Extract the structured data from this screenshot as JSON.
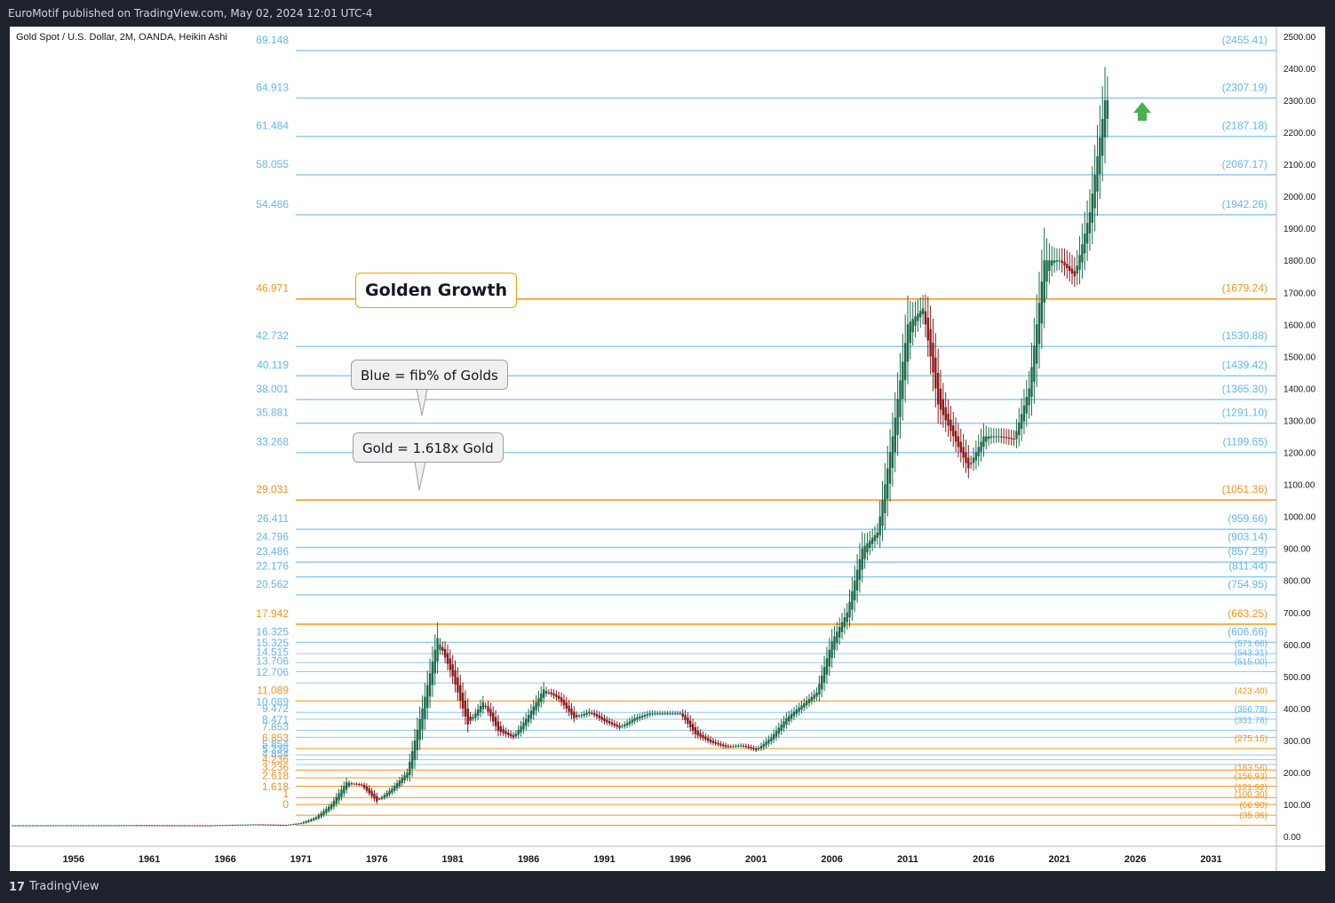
{
  "header": {
    "publisher": "EuroMotif published on TradingView.com, May 02, 2024 12:01 UTC-4"
  },
  "footer": {
    "logo": "17",
    "brand": "TradingView"
  },
  "colors": {
    "fib_blue": "#90caf9",
    "fib_blue_label": "#64b5f6",
    "fib_gold": "#f7931a",
    "bull": "#1e6b4a",
    "bear": "#8b1a1a",
    "arrow": "#4caf50"
  },
  "annotations": {
    "golden_growth": "Golden Growth",
    "blue_note": "Blue = fib% of Golds",
    "gold_note": "Gold = 1.618x Gold"
  },
  "chart_data": {
    "type": "line",
    "title": "Gold Spot / U.S. Dollar, 2M, OANDA, Heikin Ashi",
    "xlabel": "",
    "ylabel": "",
    "x_ticks": [
      "1956",
      "1961",
      "1966",
      "1971",
      "1976",
      "1981",
      "1986",
      "1991",
      "1996",
      "2001",
      "2006",
      "2011",
      "2016",
      "2021",
      "2026",
      "2031"
    ],
    "y_ticks": [
      "2500.00",
      "2400.00",
      "2300.00",
      "2200.00",
      "2100.00",
      "2000.00",
      "1900.00",
      "1800.00",
      "1700.00",
      "1600.00",
      "1500.00",
      "1400.00",
      "1300.00",
      "1200.00",
      "1100.00",
      "1000.00",
      "900.00",
      "800.00",
      "700.00",
      "600.00",
      "500.00",
      "400.00",
      "300.00",
      "200.00",
      "100.00",
      "0.00"
    ],
    "ylim": [
      -30,
      2530
    ],
    "xlim": [
      1951.8,
      2035.3
    ],
    "series": [
      {
        "values": [
          [
            1952,
            35
          ],
          [
            1960,
            35.5
          ],
          [
            1965,
            35
          ],
          [
            1968,
            38
          ],
          [
            1970,
            36
          ],
          [
            1971,
            42
          ],
          [
            1972,
            60
          ],
          [
            1973,
            100
          ],
          [
            1974,
            170
          ],
          [
            1975,
            160
          ],
          [
            1976,
            110
          ],
          [
            1977,
            150
          ],
          [
            1978,
            200
          ],
          [
            1979,
            400
          ],
          [
            1980,
            620
          ],
          [
            1981,
            500
          ],
          [
            1982,
            350
          ],
          [
            1983,
            420
          ],
          [
            1984,
            330
          ],
          [
            1985,
            310
          ],
          [
            1986,
            380
          ],
          [
            1987,
            460
          ],
          [
            1988,
            430
          ],
          [
            1989,
            370
          ],
          [
            1990,
            390
          ],
          [
            1991,
            360
          ],
          [
            1992,
            340
          ],
          [
            1993,
            370
          ],
          [
            1994,
            385
          ],
          [
            1995,
            385
          ],
          [
            1996,
            385
          ],
          [
            1997,
            320
          ],
          [
            1998,
            295
          ],
          [
            1999,
            280
          ],
          [
            2000,
            285
          ],
          [
            2001,
            270
          ],
          [
            2002,
            310
          ],
          [
            2003,
            370
          ],
          [
            2004,
            410
          ],
          [
            2005,
            450
          ],
          [
            2006,
            610
          ],
          [
            2007,
            700
          ],
          [
            2008,
            900
          ],
          [
            2009,
            950
          ],
          [
            2010,
            1250
          ],
          [
            2011,
            1600
          ],
          [
            2012,
            1650
          ],
          [
            2013,
            1350
          ],
          [
            2014,
            1250
          ],
          [
            2015,
            1150
          ],
          [
            2016,
            1250
          ],
          [
            2017,
            1250
          ],
          [
            2018,
            1240
          ],
          [
            2019,
            1400
          ],
          [
            2020,
            1800
          ],
          [
            2021,
            1800
          ],
          [
            2022,
            1750
          ],
          [
            2023,
            1950
          ],
          [
            2024,
            2300
          ]
        ]
      }
    ],
    "fib_levels": [
      {
        "fib": "69.148",
        "price": "(2455.41)",
        "value": 2455.41,
        "color": "blue"
      },
      {
        "fib": "64.913",
        "price": "(2307.19)",
        "value": 2307.19,
        "color": "blue"
      },
      {
        "fib": "61.484",
        "price": "(2187.18)",
        "value": 2187.18,
        "color": "blue"
      },
      {
        "fib": "58.055",
        "price": "(2067.17)",
        "value": 2067.17,
        "color": "blue"
      },
      {
        "fib": "54.486",
        "price": "(1942.26)",
        "value": 1942.26,
        "color": "blue"
      },
      {
        "fib": "46.971",
        "price": "(1679.24)",
        "value": 1679.24,
        "color": "gold"
      },
      {
        "fib": "42.732",
        "price": "(1530.88)",
        "value": 1530.88,
        "color": "blue"
      },
      {
        "fib": "40.119",
        "price": "(1439.42)",
        "value": 1439.42,
        "color": "blue"
      },
      {
        "fib": "38.001",
        "price": "(1365.30)",
        "value": 1365.3,
        "color": "blue"
      },
      {
        "fib": "35.881",
        "price": "(1291.10)",
        "value": 1291.1,
        "color": "blue"
      },
      {
        "fib": "33.268",
        "price": "(1199.65)",
        "value": 1199.65,
        "color": "blue"
      },
      {
        "fib": "29.031",
        "price": "(1051.36)",
        "value": 1051.36,
        "color": "gold"
      },
      {
        "fib": "26.411",
        "price": "(959.66)",
        "value": 959.66,
        "color": "blue"
      },
      {
        "fib": "24.796",
        "price": "(903.14)",
        "value": 903.14,
        "color": "blue"
      },
      {
        "fib": "23.486",
        "price": "(857.29)",
        "value": 857.29,
        "color": "blue"
      },
      {
        "fib": "22.176",
        "price": "(811.44)",
        "value": 811.44,
        "color": "blue"
      },
      {
        "fib": "20.562",
        "price": "(754.95)",
        "value": 754.95,
        "color": "blue"
      },
      {
        "fib": "17.942",
        "price": "(663.25)",
        "value": 663.25,
        "color": "gold"
      },
      {
        "fib": "16.325",
        "price": "(606.66)",
        "value": 606.66,
        "color": "blue"
      },
      {
        "fib": "15.325",
        "price": "(571.66)",
        "value": 571.66,
        "color": "blue"
      },
      {
        "fib": "14.515",
        "price": "(543.31)",
        "value": 543.31,
        "color": "blue"
      },
      {
        "fib": "13.706",
        "price": "(515.00)",
        "value": 515.0,
        "color": "blue"
      },
      {
        "fib": "12.706",
        "price": "",
        "value": 480.0,
        "color": "blue"
      },
      {
        "fib": "11.089",
        "price": "(423.40)",
        "value": 423.4,
        "color": "gold"
      },
      {
        "fib": "10.089",
        "price": "",
        "value": 388.0,
        "color": "blue"
      },
      {
        "fib": "9.472",
        "price": "(366.78)",
        "value": 366.78,
        "color": "blue"
      },
      {
        "fib": "8.471",
        "price": "(331.78)",
        "value": 331.78,
        "color": "blue"
      },
      {
        "fib": "7.853",
        "price": "",
        "value": 310.0,
        "color": "blue"
      },
      {
        "fib": "6.853",
        "price": "(275.15)",
        "value": 275.15,
        "color": "gold"
      },
      {
        "fib": "5.854",
        "price": "",
        "value": 255.0,
        "color": "blue"
      },
      {
        "fib": "5.236",
        "price": "",
        "value": 240.0,
        "color": "blue"
      },
      {
        "fib": "4.854",
        "price": "",
        "value": 225.0,
        "color": "blue"
      },
      {
        "fib": "4.236",
        "price": "",
        "value": 208.0,
        "color": "gold"
      },
      {
        "fib": "3.236",
        "price": "(183.56)",
        "value": 183.56,
        "color": "gold"
      },
      {
        "fib": "2.618",
        "price": "(156.93)",
        "value": 156.93,
        "color": "gold"
      },
      {
        "fib": "1.618",
        "price": "(121.92)",
        "value": 121.92,
        "color": "gold"
      },
      {
        "fib": "1",
        "price": "(100.30)",
        "value": 100.3,
        "color": "gold"
      },
      {
        "fib": "0",
        "price": "(66.90)",
        "value": 66.9,
        "color": "gold"
      },
      {
        "fib": "",
        "price": "(35.36)",
        "value": 35.36,
        "color": "gold"
      }
    ]
  }
}
